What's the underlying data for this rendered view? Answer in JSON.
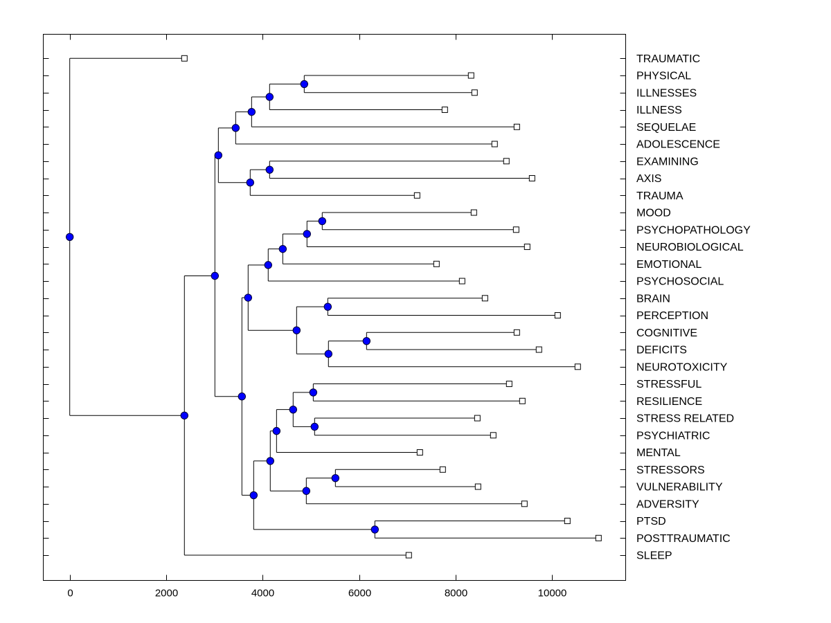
{
  "chart_data": {
    "type": "dendrogram",
    "title": "",
    "xlabel": "",
    "ylabel": "",
    "orientation": "horizontal",
    "xlim": [
      -555,
      11530
    ],
    "x_ticks": [
      0,
      2000,
      4000,
      6000,
      8000,
      10000
    ],
    "x_tick_labels": [
      "0",
      "2000",
      "4000",
      "6000",
      "8000",
      "10000"
    ],
    "grid": false,
    "node_color": "#0000ff",
    "line_color": "#000000",
    "leaves": [
      {
        "label": "TRAUMATIC",
        "value": 2377
      },
      {
        "label": "PHYSICAL",
        "value": 8320
      },
      {
        "label": "ILLNESSES",
        "value": 8392
      },
      {
        "label": "ILLNESS",
        "value": 7775
      },
      {
        "label": "SEQUELAE",
        "value": 9268
      },
      {
        "label": "ADOLESCENCE",
        "value": 8808
      },
      {
        "label": "EXAMINING",
        "value": 9052
      },
      {
        "label": "AXIS",
        "value": 9584
      },
      {
        "label": "TRAUMA",
        "value": 7201
      },
      {
        "label": "MOOD",
        "value": 8378
      },
      {
        "label": "PSYCHOPATHOLOGY",
        "value": 9254
      },
      {
        "label": "NEUROBIOLOGICAL",
        "value": 9483
      },
      {
        "label": "EMOTIONAL",
        "value": 7603
      },
      {
        "label": "PSYCHOSOCIAL",
        "value": 8134
      },
      {
        "label": "BRAIN",
        "value": 8608
      },
      {
        "label": "PERCEPTION",
        "value": 10115
      },
      {
        "label": "COGNITIVE",
        "value": 9268
      },
      {
        "label": "DEFICITS",
        "value": 9727
      },
      {
        "label": "NEUROTOXICITY",
        "value": 10531
      },
      {
        "label": "STRESSFUL",
        "value": 9110
      },
      {
        "label": "RESILIENCE",
        "value": 9383
      },
      {
        "label": "STRESS RELATED",
        "value": 8450
      },
      {
        "label": "PSYCHIATRIC",
        "value": 8780
      },
      {
        "label": "MENTAL",
        "value": 7258
      },
      {
        "label": "STRESSORS",
        "value": 7732
      },
      {
        "label": "VULNERABILITY",
        "value": 8464
      },
      {
        "label": "ADVERSITY",
        "value": 9426
      },
      {
        "label": "PTSD",
        "value": 10316
      },
      {
        "label": "POSTTRAUMATIC",
        "value": 10962
      },
      {
        "label": "SLEEP",
        "value": 7028
      }
    ],
    "tree": {
      "value": 0,
      "children": [
        {
          "leaf": 0
        },
        {
          "value": 2377,
          "children": [
            {
              "value": 3009,
              "children": [
                {
                  "value": 3081,
                  "children": [
                    {
                      "value": 3440,
                      "children": [
                        {
                          "value": 3770,
                          "children": [
                            {
                              "value": 4143,
                              "children": [
                                {
                                  "value": 4861,
                                  "children": [
                                    {
                                      "leaf": 1
                                    },
                                    {
                                      "leaf": 2
                                    }
                                  ]
                                },
                                {
                                  "leaf": 3
                                }
                              ]
                            },
                            {
                              "leaf": 4
                            }
                          ]
                        },
                        {
                          "leaf": 5
                        }
                      ]
                    },
                    {
                      "value": 3741,
                      "children": [
                        {
                          "value": 4143,
                          "children": [
                            {
                              "leaf": 6
                            },
                            {
                              "leaf": 7
                            }
                          ]
                        },
                        {
                          "leaf": 8
                        }
                      ]
                    }
                  ]
                },
                {
                  "value": 3569,
                  "children": [
                    {
                      "value": 3698,
                      "children": [
                        {
                          "value": 4114,
                          "children": [
                            {
                              "value": 4416,
                              "children": [
                                {
                                  "value": 4918,
                                  "children": [
                                    {
                                      "value": 5234,
                                      "children": [
                                        {
                                          "leaf": 9
                                        },
                                        {
                                          "leaf": 10
                                        }
                                      ]
                                    },
                                    {
                                      "leaf": 11
                                    }
                                  ]
                                },
                                {
                                  "leaf": 12
                                }
                              ]
                            },
                            {
                              "leaf": 13
                            }
                          ]
                        },
                        {
                          "value": 4703,
                          "children": [
                            {
                              "value": 5349,
                              "children": [
                                {
                                  "leaf": 14
                                },
                                {
                                  "leaf": 15
                                }
                              ]
                            },
                            {
                              "value": 5363,
                              "children": [
                                {
                                  "value": 6153,
                                  "children": [
                                    {
                                      "leaf": 16
                                    },
                                    {
                                      "leaf": 17
                                    }
                                  ]
                                },
                                {
                                  "leaf": 18
                                }
                              ]
                            }
                          ]
                        }
                      ]
                    },
                    {
                      "value": 3813,
                      "children": [
                        {
                          "value": 4157,
                          "children": [
                            {
                              "value": 4287,
                              "children": [
                                {
                                  "value": 4631,
                                  "children": [
                                    {
                                      "value": 5048,
                                      "children": [
                                        {
                                          "leaf": 19
                                        },
                                        {
                                          "leaf": 20
                                        }
                                      ]
                                    },
                                    {
                                      "value": 5076,
                                      "children": [
                                        {
                                          "leaf": 21
                                        },
                                        {
                                          "leaf": 22
                                        }
                                      ]
                                    }
                                  ]
                                },
                                {
                                  "leaf": 23
                                }
                              ]
                            },
                            {
                              "value": 4904,
                              "children": [
                                {
                                  "value": 5507,
                                  "children": [
                                    {
                                      "leaf": 24
                                    },
                                    {
                                      "leaf": 25
                                    }
                                  ]
                                },
                                {
                                  "leaf": 26
                                }
                              ]
                            }
                          ]
                        },
                        {
                          "value": 6325,
                          "children": [
                            {
                              "leaf": 27
                            },
                            {
                              "leaf": 28
                            }
                          ]
                        }
                      ]
                    }
                  ]
                }
              ]
            },
            {
              "leaf": 29
            }
          ]
        }
      ]
    }
  }
}
